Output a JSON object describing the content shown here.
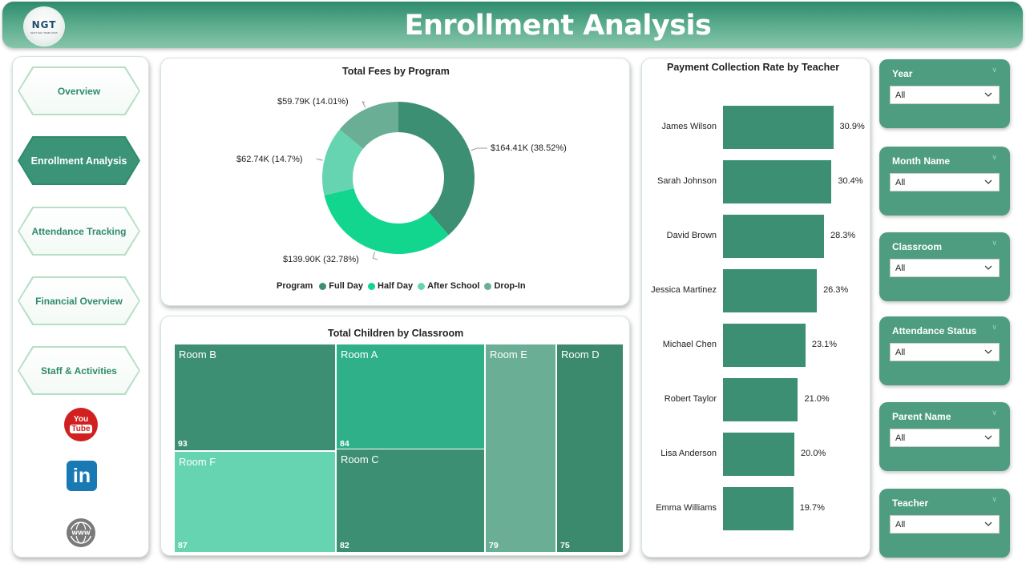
{
  "header": {
    "title": "Enrollment Analysis",
    "logo_text": "NGT",
    "logo_subtext": "NEXT GEN TEMPLATES"
  },
  "nav": {
    "items": [
      {
        "label": "Overview",
        "active": false
      },
      {
        "label": "Enrollment Analysis",
        "active": true
      },
      {
        "label": "Attendance Tracking",
        "active": false
      },
      {
        "label": "Financial Overview",
        "active": false
      },
      {
        "label": "Staff & Activities",
        "active": false
      }
    ],
    "social": {
      "youtube_line1": "You",
      "youtube_line2": "Tube",
      "linkedin": "in",
      "web": "WWW"
    }
  },
  "donut": {
    "title": "Total Fees by Program",
    "legend_title": "Program",
    "slices": [
      {
        "name": "Full Day",
        "label": "$164.41K (38.52%)",
        "color": "#3d8f73",
        "value": 164.41,
        "percent": 38.52
      },
      {
        "name": "Half Day",
        "label": "$139.90K (32.78%)",
        "color": "#12d68e",
        "value": 139.9,
        "percent": 32.78
      },
      {
        "name": "After School",
        "label": "$62.74K (14.7%)",
        "color": "#66d4b0",
        "value": 62.74,
        "percent": 14.7
      },
      {
        "name": "Drop-In",
        "label": "$59.79K (14.01%)",
        "color": "#6aae95",
        "value": 59.79,
        "percent": 14.01
      }
    ]
  },
  "treemap": {
    "title": "Total Children by Classroom",
    "cells": [
      {
        "name": "Room B",
        "value": "93",
        "color": "#3d8f73"
      },
      {
        "name": "Room A",
        "value": "84",
        "color": "#2fb088"
      },
      {
        "name": "Room F",
        "value": "87",
        "color": "#66d4b0"
      },
      {
        "name": "Room C",
        "value": "82",
        "color": "#3d8f73"
      },
      {
        "name": "Room E",
        "value": "79",
        "color": "#6aae95"
      },
      {
        "name": "Room D",
        "value": "75",
        "color": "#3b8a6e"
      }
    ]
  },
  "bars": {
    "title": "Payment Collection Rate by Teacher",
    "color": "#3d8f73",
    "items": [
      {
        "name": "James Wilson",
        "value": 30.9,
        "label": "30.9%"
      },
      {
        "name": "Sarah Johnson",
        "value": 30.4,
        "label": "30.4%"
      },
      {
        "name": "David Brown",
        "value": 28.3,
        "label": "28.3%"
      },
      {
        "name": "Jessica Martinez",
        "value": 26.3,
        "label": "26.3%"
      },
      {
        "name": "Michael Chen",
        "value": 23.1,
        "label": "23.1%"
      },
      {
        "name": "Robert Taylor",
        "value": 21.0,
        "label": "21.0%"
      },
      {
        "name": "Lisa Anderson",
        "value": 20.0,
        "label": "20.0%"
      },
      {
        "name": "Emma Williams",
        "value": 19.7,
        "label": "19.7%"
      }
    ]
  },
  "slicers": [
    {
      "label": "Year",
      "value": "All"
    },
    {
      "label": "Month Name",
      "value": "All"
    },
    {
      "label": "Classroom",
      "value": "All"
    },
    {
      "label": "Attendance Status",
      "value": "All"
    },
    {
      "label": "Parent Name",
      "value": "All"
    },
    {
      "label": "Teacher",
      "value": "All"
    }
  ]
}
